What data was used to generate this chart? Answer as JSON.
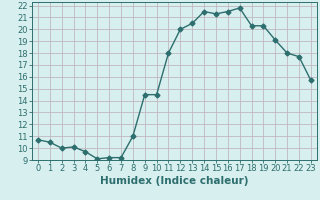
{
  "x": [
    0,
    1,
    2,
    3,
    4,
    5,
    6,
    7,
    8,
    9,
    10,
    11,
    12,
    13,
    14,
    15,
    16,
    17,
    18,
    19,
    20,
    21,
    22,
    23
  ],
  "y": [
    10.7,
    10.5,
    10.0,
    10.1,
    9.7,
    9.1,
    9.2,
    9.2,
    11.0,
    14.5,
    14.5,
    18.0,
    20.0,
    20.5,
    21.5,
    21.3,
    21.5,
    21.8,
    20.3,
    20.3,
    19.1,
    18.0,
    17.7,
    15.7
  ],
  "line_color": "#2d6e6e",
  "bg_color": "#d7efee",
  "grid_color": "#c0b8c0",
  "xlabel": "Humidex (Indice chaleur)",
  "ylim": [
    9,
    22
  ],
  "xlim": [
    -0.5,
    23.5
  ],
  "yticks": [
    9,
    10,
    11,
    12,
    13,
    14,
    15,
    16,
    17,
    18,
    19,
    20,
    21,
    22
  ],
  "xticks": [
    0,
    1,
    2,
    3,
    4,
    5,
    6,
    7,
    8,
    9,
    10,
    11,
    12,
    13,
    14,
    15,
    16,
    17,
    18,
    19,
    20,
    21,
    22,
    23
  ],
  "marker": "D",
  "marker_size": 2.5,
  "line_width": 1.0,
  "xlabel_fontsize": 7.5,
  "tick_fontsize": 6
}
